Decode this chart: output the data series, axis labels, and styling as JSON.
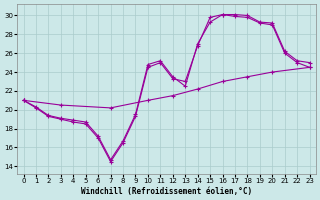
{
  "xlabel": "Windchill (Refroidissement éolien,°C)",
  "background_color": "#cce8e8",
  "grid_color": "#aacccc",
  "line_color": "#990099",
  "x_ticks": [
    0,
    1,
    2,
    3,
    4,
    5,
    6,
    7,
    8,
    9,
    10,
    11,
    12,
    13,
    14,
    15,
    16,
    17,
    18,
    19,
    20,
    21,
    22,
    23
  ],
  "y_ticks": [
    14,
    16,
    18,
    20,
    22,
    24,
    26,
    28,
    30
  ],
  "xlim": [
    -0.5,
    23.5
  ],
  "ylim": [
    13.2,
    31.2
  ],
  "curve1_x": [
    0,
    1,
    2,
    3,
    4,
    5,
    6,
    7,
    8,
    9,
    10,
    11,
    12,
    13,
    14,
    15,
    16,
    17,
    18,
    19,
    20,
    21,
    22,
    23
  ],
  "curve1_y": [
    21.0,
    20.2,
    19.3,
    19.0,
    18.7,
    18.5,
    17.0,
    14.5,
    16.5,
    19.3,
    24.5,
    25.0,
    23.3,
    23.0,
    26.8,
    29.8,
    30.1,
    29.9,
    29.8,
    29.2,
    29.0,
    26.0,
    25.0,
    24.5
  ],
  "curve2_x": [
    0,
    1,
    2,
    3,
    4,
    5,
    6,
    7,
    8,
    9,
    10,
    11,
    12,
    13,
    14,
    15,
    16,
    17,
    18,
    19,
    20,
    21,
    22,
    23
  ],
  "curve2_y": [
    21.0,
    20.3,
    19.4,
    19.1,
    18.9,
    18.7,
    17.2,
    14.7,
    16.7,
    19.5,
    24.8,
    25.2,
    23.5,
    22.5,
    27.0,
    29.3,
    30.1,
    30.1,
    30.0,
    29.3,
    29.2,
    26.2,
    25.2,
    25.0
  ],
  "curve3_x": [
    0,
    3,
    7,
    10,
    12,
    14,
    16,
    18,
    20,
    23
  ],
  "curve3_y": [
    21.0,
    20.5,
    20.2,
    21.0,
    21.5,
    22.2,
    23.0,
    23.5,
    24.0,
    24.5
  ]
}
